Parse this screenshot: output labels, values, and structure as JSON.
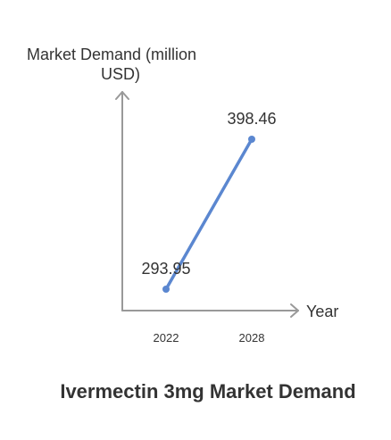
{
  "chart_data": {
    "type": "line",
    "title": "Ivermectin 3mg Market Demand",
    "xlabel": "Year",
    "ylabel_line1": "Market Demand (million",
    "ylabel_line2": "USD)",
    "categories": [
      "2022",
      "2028"
    ],
    "series": [
      {
        "values": [
          293.95,
          398.46
        ]
      }
    ],
    "data_labels": [
      "293.95",
      "398.46"
    ],
    "grid": false,
    "colors": {
      "line": "#5b87d0",
      "axis": "#999999",
      "text": "#333333"
    }
  }
}
